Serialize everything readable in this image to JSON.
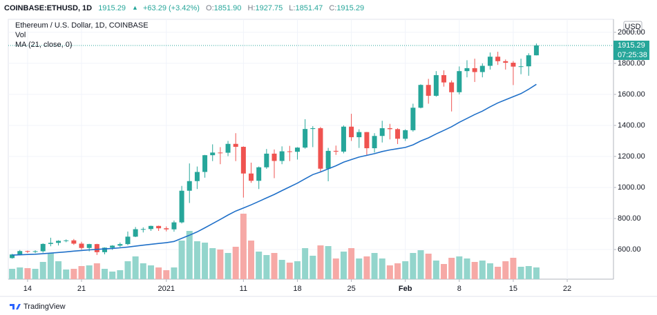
{
  "chart_data": {
    "type": "candlestick",
    "header": {
      "symbol": "COINBASE:ETHUSD, 1D",
      "last": "1915.29",
      "arrow": "▲",
      "change": "+63.29 (+3.42%)",
      "ohlc": [
        {
          "label": "O:",
          "value": "1851.90"
        },
        {
          "label": "H:",
          "value": "1927.75"
        },
        {
          "label": "L:",
          "value": "1851.47"
        },
        {
          "label": "C:",
          "value": "1915.29"
        }
      ]
    },
    "legend": [
      "Ethereum / U.S. Dollar, 1D, COINBASE",
      "Vol",
      "MA (21, close, 0)"
    ],
    "currency": "USD",
    "countdown": "07:25:38",
    "brand": "TradingView",
    "up_color": "#26a69a",
    "down_color": "#ef5350",
    "volume_up_color": "#93d5cc",
    "volume_down_color": "#f6a9a6",
    "ma_color": "#1e6fc8",
    "grid": true,
    "xlim": [
      -0.5,
      78
    ],
    "xticks": [
      {
        "value": 2,
        "label": "14"
      },
      {
        "value": 9,
        "label": "21"
      },
      {
        "value": 20,
        "label": "2021"
      },
      {
        "value": 30,
        "label": "11"
      },
      {
        "value": 37,
        "label": "18"
      },
      {
        "value": 44,
        "label": "25"
      },
      {
        "value": 51,
        "label": "Feb"
      },
      {
        "value": 58,
        "label": "8"
      },
      {
        "value": 65,
        "label": "15"
      },
      {
        "value": 72,
        "label": "22"
      }
    ],
    "ylim": [
      409,
      2084
    ],
    "yticks": [
      {
        "value": 600,
        "label": "600.00"
      },
      {
        "value": 800,
        "label": "800.00"
      },
      {
        "value": 1000,
        "label": "1000.00"
      },
      {
        "value": 1200,
        "label": "1200.00"
      },
      {
        "value": 1400,
        "label": "1400.00"
      },
      {
        "value": 1600,
        "label": "1600.00"
      },
      {
        "value": 1800,
        "label": "1800.00"
      },
      {
        "value": 2000,
        "label": "2000.00"
      }
    ],
    "candles": [
      [
        545,
        572,
        541,
        568
      ],
      [
        568,
        597,
        562,
        590
      ],
      [
        590,
        593,
        578,
        586
      ],
      [
        586,
        595,
        577,
        589
      ],
      [
        589,
        640,
        580,
        636
      ],
      [
        636,
        676,
        621,
        643
      ],
      [
        643,
        660,
        626,
        656
      ],
      [
        656,
        665,
        647,
        659
      ],
      [
        659,
        668,
        630,
        638
      ],
      [
        638,
        650,
        599,
        610
      ],
      [
        610,
        637,
        588,
        635
      ],
      [
        635,
        637,
        565,
        583
      ],
      [
        583,
        614,
        569,
        612
      ],
      [
        612,
        628,
        598,
        625
      ],
      [
        625,
        645,
        616,
        635
      ],
      [
        635,
        716,
        628,
        683
      ],
      [
        683,
        745,
        680,
        731
      ],
      [
        731,
        743,
        710,
        732
      ],
      [
        732,
        754,
        720,
        752
      ],
      [
        752,
        754,
        720,
        737
      ],
      [
        737,
        749,
        717,
        730
      ],
      [
        730,
        787,
        715,
        775
      ],
      [
        775,
        1010,
        768,
        979
      ],
      [
        979,
        1155,
        900,
        1041
      ],
      [
        1041,
        1135,
        990,
        1100
      ],
      [
        1100,
        1210,
        1063,
        1208
      ],
      [
        1208,
        1278,
        1170,
        1225
      ],
      [
        1225,
        1260,
        1150,
        1224
      ],
      [
        1224,
        1300,
        1202,
        1281
      ],
      [
        1281,
        1350,
        1170,
        1262
      ],
      [
        1262,
        1265,
        935,
        1090
      ],
      [
        1090,
        1160,
        1030,
        1043
      ],
      [
        1043,
        1135,
        990,
        1130
      ],
      [
        1130,
        1248,
        1120,
        1218
      ],
      [
        1218,
        1245,
        1060,
        1171
      ],
      [
        1171,
        1265,
        1150,
        1233
      ],
      [
        1233,
        1268,
        1170,
        1230
      ],
      [
        1230,
        1260,
        1180,
        1257
      ],
      [
        1257,
        1440,
        1250,
        1377
      ],
      [
        1377,
        1395,
        1260,
        1382
      ],
      [
        1382,
        1390,
        1100,
        1121
      ],
      [
        1121,
        1255,
        1040,
        1236
      ],
      [
        1236,
        1270,
        1210,
        1231
      ],
      [
        1231,
        1400,
        1220,
        1392
      ],
      [
        1392,
        1475,
        1300,
        1324
      ],
      [
        1324,
        1375,
        1255,
        1357
      ],
      [
        1357,
        1358,
        1210,
        1253
      ],
      [
        1253,
        1350,
        1225,
        1332
      ],
      [
        1332,
        1430,
        1290,
        1382
      ],
      [
        1382,
        1410,
        1310,
        1376
      ],
      [
        1376,
        1382,
        1280,
        1314
      ],
      [
        1314,
        1375,
        1300,
        1369
      ],
      [
        1369,
        1540,
        1360,
        1514
      ],
      [
        1514,
        1665,
        1510,
        1661
      ],
      [
        1661,
        1700,
        1540,
        1591
      ],
      [
        1591,
        1750,
        1585,
        1724
      ],
      [
        1724,
        1755,
        1650,
        1677
      ],
      [
        1677,
        1690,
        1490,
        1614
      ],
      [
        1614,
        1780,
        1600,
        1750
      ],
      [
        1750,
        1820,
        1710,
        1769
      ],
      [
        1769,
        1830,
        1680,
        1744
      ],
      [
        1744,
        1800,
        1710,
        1784
      ],
      [
        1784,
        1870,
        1760,
        1843
      ],
      [
        1843,
        1875,
        1790,
        1814
      ],
      [
        1814,
        1825,
        1760,
        1804
      ],
      [
        1804,
        1815,
        1660,
        1779
      ],
      [
        1779,
        1830,
        1730,
        1781
      ],
      [
        1781,
        1865,
        1720,
        1852
      ],
      [
        1851.9,
        1927.75,
        1851.47,
        1915.29
      ]
    ],
    "volumes": [
      150000,
      170000,
      160000,
      150000,
      250000,
      380000,
      260000,
      140000,
      150000,
      190000,
      200000,
      230000,
      150000,
      110000,
      130000,
      260000,
      330000,
      230000,
      200000,
      170000,
      130000,
      170000,
      560000,
      700000,
      550000,
      530000,
      450000,
      430000,
      380000,
      470000,
      950000,
      560000,
      400000,
      350000,
      380000,
      280000,
      240000,
      260000,
      450000,
      340000,
      490000,
      480000,
      300000,
      400000,
      450000,
      300000,
      330000,
      380000,
      300000,
      200000,
      230000,
      260000,
      380000,
      420000,
      370000,
      270000,
      220000,
      310000,
      330000,
      300000,
      250000,
      270000,
      230000,
      180000,
      260000,
      310000,
      180000,
      190000,
      170000
    ],
    "ma": [
      564,
      566,
      568,
      570,
      573,
      577,
      581,
      585,
      590,
      594,
      598,
      601,
      604,
      607,
      611,
      616,
      622,
      628,
      634,
      639,
      644,
      652,
      672,
      692,
      714,
      740,
      767,
      794,
      822,
      848,
      868,
      888,
      910,
      933,
      955,
      980,
      1004,
      1028,
      1056,
      1083,
      1100,
      1120,
      1140,
      1163,
      1180,
      1196,
      1207,
      1218,
      1232,
      1242,
      1250,
      1258,
      1275,
      1300,
      1320,
      1345,
      1368,
      1392,
      1420,
      1445,
      1470,
      1492,
      1520,
      1545,
      1565,
      1585,
      1605,
      1633,
      1665
    ]
  }
}
